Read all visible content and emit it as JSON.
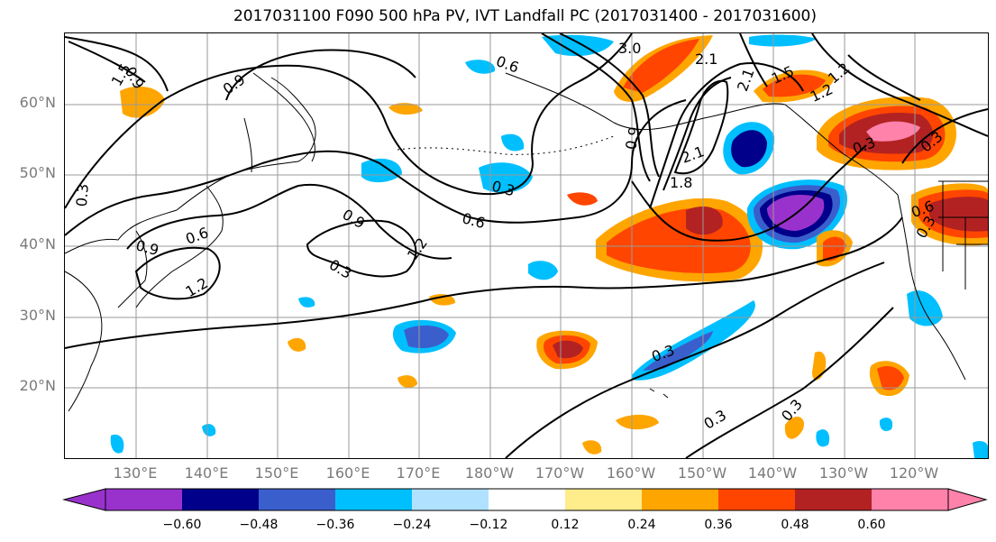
{
  "title": "2017031100 F090 500 hPa PV, IVT Landfall PC (2017031400 - 2017031600)",
  "lat_labels": [
    "60°N",
    "50°N",
    "40°N",
    "30°N",
    "20°N"
  ],
  "lon_labels": [
    "130°E",
    "140°E",
    "150°E",
    "160°E",
    "170°E",
    "180°W",
    "170°W",
    "160°W",
    "150°W",
    "140°W",
    "130°W",
    "120°W"
  ],
  "contour_labels": [
    "3.0",
    "1.5",
    "2.1",
    "1.2",
    "0.9",
    "0.6",
    "2.1",
    "1.5",
    "1.2",
    "0.9",
    "0.3",
    "0.6",
    "0.3",
    "0.9",
    "0.6",
    "1.2",
    "0.3",
    "0.9",
    "0.9",
    "1.2",
    "0.3",
    "1.8",
    "2.1",
    "0.3",
    "0.3",
    "0.3",
    "0.3",
    "0.3",
    "0.6"
  ],
  "colorbar": {
    "ticks": [
      "−0.60",
      "−0.48",
      "−0.36",
      "−0.24",
      "−0.12",
      "0.12",
      "0.24",
      "0.36",
      "0.48",
      "0.60"
    ],
    "colors": [
      "#9932cc",
      "#00008b",
      "#3a5fcd",
      "#00bfff",
      "#b0e2ff",
      "#ffffff",
      "#ffec8b",
      "#ffa500",
      "#ff4500",
      "#b22222",
      "#ff82ab"
    ]
  },
  "legend_colors": {
    "lt_-0.60": "#9932cc",
    "-0.60_-0.48": "#00008b",
    "-0.48_-0.36": "#3a5fcd",
    "-0.36_-0.24": "#00bfff",
    "-0.24_-0.12": "#b0e2ff",
    "0.12_0.24": "#ffec8b",
    "0.24_0.36": "#ffa500",
    "0.36_0.48": "#ff4500",
    "0.48_0.60": "#b22222",
    "gt_0.60": "#ff82ab"
  }
}
